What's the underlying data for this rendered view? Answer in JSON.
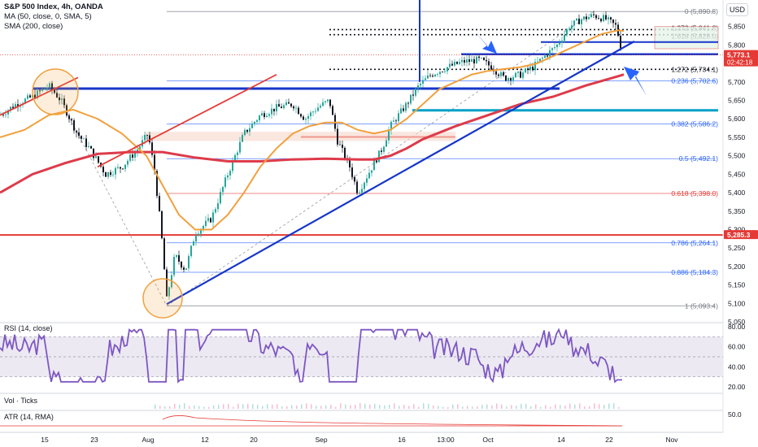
{
  "header": {
    "symbol": "S&P 500 Index, 4h, OANDA",
    "ma_label": "MA (50, close, 0, SMA, 5)",
    "sma_label": "SMA (200, close)",
    "currency": "USD"
  },
  "colors": {
    "bull_candle": "#26a69a",
    "bear_candle": "#131722",
    "ma50": "#f2a03d",
    "sma200": "#dd3b4a",
    "trend_blue": "#1636c9",
    "arrow_blue": "#2962ff",
    "red_line": "#e53935",
    "cyan_line": "#00a0c8",
    "fib_zero": "#787b86",
    "fib_blue": "#2962ff",
    "fib_red": "#e53935",
    "rsi_line": "#7e57c2",
    "rsi_band": "#ece9f3",
    "atr_line": "#e53935",
    "circle": "#f2a03d"
  },
  "chart_data": {
    "type": "candlestick",
    "title": "S&P 500 Index, 4h, OANDA",
    "price_axis": {
      "min": 5050,
      "max": 5900,
      "ticks": [
        5850,
        5800,
        5750,
        5700,
        5650,
        5600,
        5550,
        5500,
        5450,
        5400,
        5350,
        5300,
        5250,
        5200,
        5150,
        5100,
        5050
      ]
    },
    "x_ticks": [
      "15",
      "23",
      "Aug",
      "12",
      "20",
      "Sep",
      "16",
      "13:00",
      "Oct",
      "14",
      "22",
      "Nov"
    ],
    "price_labels": [
      {
        "value": 5773.1,
        "text": "5,773.1",
        "sub": "02:42:18",
        "color": "#e53935"
      },
      {
        "value": 5285.3,
        "text": "5,285.3",
        "color": "#e53935"
      }
    ],
    "fib_levels": [
      {
        "level": 0,
        "value": 5890.8,
        "text": "0 (5,890.8)",
        "color": "#787b86"
      },
      {
        "level": 1.272,
        "value": 5841.8,
        "text": "1.272 (5,841.8)",
        "color": "#131722"
      },
      {
        "level": 1.618,
        "value": 5828.0,
        "text": "1.618 (5,828.0)",
        "color": "#131722"
      },
      {
        "level": 1.272,
        "value": 5734.1,
        "text": "1.272 (5,734.1)",
        "color": "#131722"
      },
      {
        "level": 0.236,
        "value": 5702.6,
        "text": "0.236 (5,702.6)",
        "color": "#2962ff"
      },
      {
        "level": 0.382,
        "value": 5586.2,
        "text": "0.382 (5,586.2)",
        "color": "#2962ff"
      },
      {
        "level": 0.5,
        "value": 5492.1,
        "text": "0.5 (5,492.1)",
        "color": "#2962ff"
      },
      {
        "level": 0.618,
        "value": 5398.0,
        "text": "0.618 (5,398.0)",
        "color": "#e53935"
      },
      {
        "level": 0.786,
        "value": 5264.1,
        "text": "0.786 (5,264.1)",
        "color": "#2962ff"
      },
      {
        "level": 0.886,
        "value": 5184.3,
        "text": "0.886 (5,184.3)",
        "color": "#2962ff"
      },
      {
        "level": 1,
        "value": 5093.4,
        "text": "1 (5,093.4)",
        "color": "#787b86"
      }
    ],
    "horizontal_lines": [
      {
        "value": 5285.3,
        "color": "#e53935"
      },
      {
        "value": 5682,
        "color": "#1636c9"
      },
      {
        "value": 5775,
        "color": "#1636c9"
      },
      {
        "value": 5808,
        "color": "#1636c9"
      },
      {
        "value": 5623,
        "color": "#00a0c8"
      },
      {
        "value": 5551,
        "color": "#e53935"
      },
      {
        "value": 5773.1,
        "color": "#e53935"
      }
    ],
    "trendlines": [
      {
        "from": [
          205,
          5098
        ],
        "to": [
          780,
          5810
        ],
        "color": "#1636c9"
      },
      {
        "from": [
          0,
          5610
        ],
        "to": [
          96,
          5712
        ],
        "color": "#e53935"
      },
      {
        "from": [
          120,
          5470
        ],
        "to": [
          340,
          5720
        ],
        "color": "#e53935"
      }
    ],
    "ma50_path": [
      [
        0,
        5550
      ],
      [
        30,
        5570
      ],
      [
        60,
        5610
      ],
      [
        90,
        5625
      ],
      [
        120,
        5600
      ],
      [
        150,
        5560
      ],
      [
        180,
        5500
      ],
      [
        200,
        5420
      ],
      [
        220,
        5340
      ],
      [
        240,
        5300
      ],
      [
        260,
        5300
      ],
      [
        280,
        5340
      ],
      [
        300,
        5400
      ],
      [
        320,
        5470
      ],
      [
        340,
        5520
      ],
      [
        360,
        5560
      ],
      [
        380,
        5580
      ],
      [
        400,
        5590
      ],
      [
        420,
        5590
      ],
      [
        440,
        5570
      ],
      [
        460,
        5560
      ],
      [
        480,
        5570
      ],
      [
        500,
        5600
      ],
      [
        520,
        5640
      ],
      [
        540,
        5680
      ],
      [
        560,
        5700
      ],
      [
        580,
        5720
      ],
      [
        600,
        5730
      ],
      [
        620,
        5735
      ],
      [
        640,
        5740
      ],
      [
        660,
        5750
      ],
      [
        680,
        5770
      ],
      [
        700,
        5790
      ],
      [
        720,
        5810
      ],
      [
        740,
        5830
      ],
      [
        760,
        5840
      ],
      [
        767,
        5838
      ]
    ],
    "sma200_path": [
      [
        0,
        5400
      ],
      [
        40,
        5450
      ],
      [
        80,
        5480
      ],
      [
        120,
        5505
      ],
      [
        160,
        5510
      ],
      [
        200,
        5510
      ],
      [
        240,
        5495
      ],
      [
        280,
        5485
      ],
      [
        320,
        5485
      ],
      [
        360,
        5490
      ],
      [
        400,
        5492
      ],
      [
        440,
        5490
      ],
      [
        460,
        5490
      ],
      [
        480,
        5500
      ],
      [
        500,
        5520
      ],
      [
        520,
        5545
      ],
      [
        560,
        5580
      ],
      [
        600,
        5610
      ],
      [
        640,
        5640
      ],
      [
        680,
        5660
      ],
      [
        720,
        5690
      ],
      [
        767,
        5720
      ]
    ],
    "rsi": {
      "min": 20,
      "max": 80,
      "ticks": [
        80,
        60,
        40,
        20
      ],
      "band": [
        30,
        70
      ],
      "last": 27
    },
    "atr": {
      "ticks": [
        50.0
      ]
    },
    "volume": {
      "label": "Vol · Ticks"
    }
  },
  "panes": {
    "rsi_label": "RSI (14, close)",
    "vol_label": "Vol · Ticks",
    "atr_label": "ATR (14, RMA)"
  }
}
